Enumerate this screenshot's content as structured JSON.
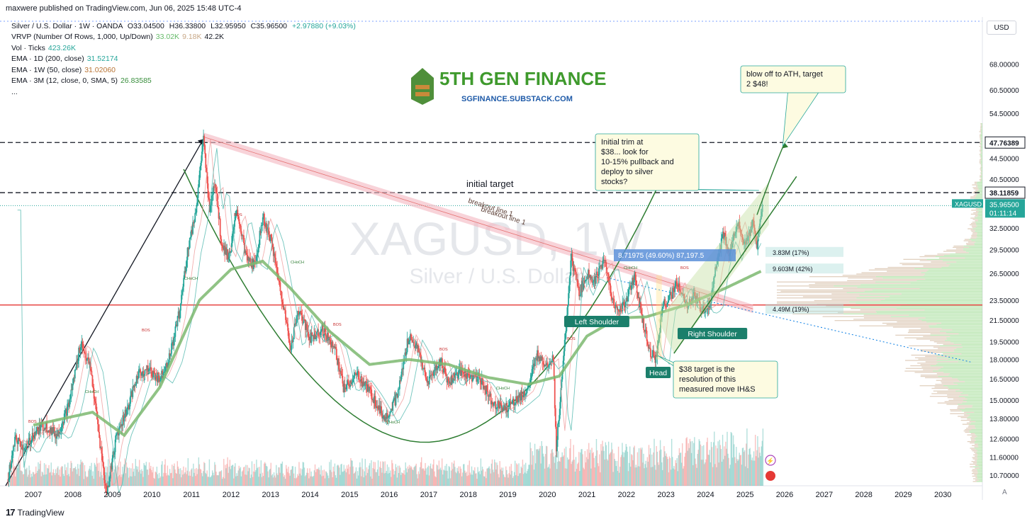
{
  "header": {
    "publisher": "maxwere published on TradingView.com, Jun 06, 2025 15:48 UTC-4",
    "symbol_line": {
      "name": "Silver / U.S. Dollar · 1W · OANDA",
      "o": "O33.04500",
      "h": "H36.33800",
      "l": "L32.95950",
      "c": "C35.96500",
      "change": "+2.97880 (+9.03%)"
    },
    "indicators": [
      {
        "label": "VRVP (Number Of Rows, 1,000, Up/Down)",
        "values": [
          "33.02K",
          "9.18K",
          "42.2K"
        ],
        "colors": [
          "#66bb6a",
          "#c8a887",
          "#131722"
        ]
      },
      {
        "label": "Vol · Ticks",
        "values": [
          "423.26K"
        ],
        "colors": [
          "#26a69a"
        ]
      },
      {
        "label": "EMA · 1D (200, close)",
        "values": [
          "31.52174"
        ],
        "colors": [
          "#26a69a"
        ]
      },
      {
        "label": "EMA · 1W (50, close)",
        "values": [
          "31.02060"
        ],
        "colors": [
          "#b87333"
        ]
      },
      {
        "label": "EMA · 3M (12, close, 0, SMA, 5)",
        "values": [
          "26.83585"
        ],
        "colors": [
          "#388e3c"
        ]
      },
      {
        "label": "...",
        "values": [],
        "colors": []
      }
    ]
  },
  "currency": "USD",
  "watermark": {
    "symbol": "XAGUSD, 1W",
    "name": "Silver / U.S. Dollar"
  },
  "brand": {
    "name": "5TH GEN FINANCE",
    "url": "SGFINANCE.SUBSTACK.COM",
    "color": "#3f9a2d",
    "url_color": "#1e5aa8"
  },
  "footer": {
    "brand": "TradingView"
  },
  "colors": {
    "up": "#26a69a",
    "down": "#ef5350",
    "ema_light": "#8bc34a",
    "ema_heavy": "#7cb870",
    "support": "#e53935",
    "trend": "#2e7d32"
  },
  "chart_data": {
    "type": "candlestick",
    "title": "Silver / U.S. Dollar · 1W · OANDA",
    "xlabel": "",
    "ylabel": "USD",
    "log_scale": true,
    "x_ticks": [
      "2007",
      "2008",
      "2009",
      "2010",
      "2011",
      "2012",
      "2013",
      "2014",
      "2015",
      "2016",
      "2017",
      "2018",
      "2019",
      "2020",
      "2021",
      "2022",
      "2023",
      "2024",
      "2025",
      "2026",
      "2027",
      "2028",
      "2029",
      "2030"
    ],
    "y_ticks": [
      "68.00000",
      "60.50000",
      "54.50000",
      "44.50000",
      "40.50000",
      "32.50000",
      "29.50000",
      "26.50000",
      "23.50000",
      "21.50000",
      "19.50000",
      "18.00000",
      "16.50000",
      "15.00000",
      "13.80000",
      "12.60000",
      "11.60000",
      "10.70000"
    ],
    "ylim": [
      10.2,
      84
    ],
    "price_path": [
      [
        2006.35,
        10.5
      ],
      [
        2006.55,
        12.6
      ],
      [
        2006.8,
        12.0
      ],
      [
        2007.0,
        12.9
      ],
      [
        2007.3,
        13.4
      ],
      [
        2007.6,
        12.8
      ],
      [
        2007.9,
        14.7
      ],
      [
        2008.2,
        19.5
      ],
      [
        2008.45,
        17.2
      ],
      [
        2008.65,
        13.0
      ],
      [
        2008.85,
        9.8
      ],
      [
        2009.1,
        12.8
      ],
      [
        2009.4,
        14.6
      ],
      [
        2009.65,
        16.9
      ],
      [
        2009.9,
        17.2
      ],
      [
        2010.2,
        16.5
      ],
      [
        2010.45,
        18.3
      ],
      [
        2010.7,
        22.4
      ],
      [
        2010.9,
        29.4
      ],
      [
        2011.1,
        34.8
      ],
      [
        2011.3,
        48.5
      ],
      [
        2011.45,
        35.5
      ],
      [
        2011.6,
        40.5
      ],
      [
        2011.75,
        30.5
      ],
      [
        2011.95,
        28.5
      ],
      [
        2012.15,
        35.2
      ],
      [
        2012.4,
        28.2
      ],
      [
        2012.6,
        27.5
      ],
      [
        2012.8,
        34.2
      ],
      [
        2013.0,
        31.0
      ],
      [
        2013.3,
        23.5
      ],
      [
        2013.5,
        19.0
      ],
      [
        2013.7,
        22.5
      ],
      [
        2014.0,
        19.8
      ],
      [
        2014.3,
        20.6
      ],
      [
        2014.6,
        19.2
      ],
      [
        2014.85,
        15.8
      ],
      [
        2015.2,
        16.8
      ],
      [
        2015.5,
        15.6
      ],
      [
        2015.9,
        13.8
      ],
      [
        2016.2,
        15.2
      ],
      [
        2016.5,
        20.1
      ],
      [
        2016.75,
        18.6
      ],
      [
        2016.95,
        16.2
      ],
      [
        2017.3,
        17.9
      ],
      [
        2017.5,
        16.2
      ],
      [
        2017.75,
        17.0
      ],
      [
        2017.95,
        16.8
      ],
      [
        2018.3,
        16.5
      ],
      [
        2018.6,
        14.9
      ],
      [
        2018.9,
        14.4
      ],
      [
        2019.2,
        15.0
      ],
      [
        2019.5,
        15.7
      ],
      [
        2019.75,
        18.5
      ],
      [
        2019.95,
        17.6
      ],
      [
        2020.15,
        18.2
      ],
      [
        2020.22,
        12.0
      ],
      [
        2020.4,
        17.6
      ],
      [
        2020.6,
        28.5
      ],
      [
        2020.8,
        24.2
      ],
      [
        2021.0,
        26.5
      ],
      [
        2021.2,
        25.8
      ],
      [
        2021.45,
        28.0
      ],
      [
        2021.7,
        22.5
      ],
      [
        2021.95,
        23.0
      ],
      [
        2022.2,
        26.2
      ],
      [
        2022.4,
        21.5
      ],
      [
        2022.6,
        18.7
      ],
      [
        2022.75,
        18.0
      ],
      [
        2022.9,
        22.8
      ],
      [
        2023.1,
        23.8
      ],
      [
        2023.3,
        25.4
      ],
      [
        2023.5,
        22.8
      ],
      [
        2023.7,
        23.9
      ],
      [
        2023.9,
        22.5
      ],
      [
        2024.1,
        23.0
      ],
      [
        2024.3,
        28.5
      ],
      [
        2024.45,
        31.6
      ],
      [
        2024.6,
        28.5
      ],
      [
        2024.8,
        33.8
      ],
      [
        2025.0,
        29.8
      ],
      [
        2025.2,
        33.3
      ],
      [
        2025.3,
        30.0
      ],
      [
        2025.43,
        35.965
      ]
    ],
    "ema_3m": [
      [
        2007.0,
        13.4
      ],
      [
        2008.5,
        14.2
      ],
      [
        2009.3,
        12.8
      ],
      [
        2010.2,
        15.9
      ],
      [
        2011.2,
        23.5
      ],
      [
        2012.0,
        27.0
      ],
      [
        2012.8,
        28.0
      ],
      [
        2013.5,
        24.8
      ],
      [
        2014.5,
        20.4
      ],
      [
        2015.5,
        17.6
      ],
      [
        2016.5,
        18.0
      ],
      [
        2017.5,
        17.6
      ],
      [
        2018.5,
        16.6
      ],
      [
        2019.5,
        16.1
      ],
      [
        2020.3,
        16.7
      ],
      [
        2021.0,
        20.0
      ],
      [
        2021.8,
        21.7
      ],
      [
        2022.5,
        21.8
      ],
      [
        2023.5,
        23.0
      ],
      [
        2024.5,
        24.8
      ],
      [
        2025.43,
        26.83585
      ]
    ],
    "price_labels": [
      {
        "price": 47.76389,
        "text": "47.76389"
      },
      {
        "price": 38.11859,
        "text": "38.11859"
      },
      {
        "price": 35.965,
        "symbol": "XAGUSD",
        "text": "35.96500",
        "countdown": "01:11:14"
      }
    ],
    "annotations": {
      "initial_target": "initial target",
      "breakout_line": "breakout line 1",
      "left_shoulder": "Left Shoulder",
      "head": "Head",
      "right_shoulder": "Right Shoulder",
      "measure": "8.71975 (49.60%) 87,197.5",
      "vp_labels": [
        "3.83M (17%)",
        "9.603M (42%)",
        "4.49M (19%)"
      ],
      "callouts": [
        {
          "text": "blow off to ATH, target 2 $48!"
        },
        {
          "text": "Initial trim at $38... look for 10-15% pullback and deploy to silver stocks?"
        },
        {
          "text": "$38 target is the resolution of this measured move IH&S"
        }
      ],
      "small_tags": [
        "BOS",
        "CHoCH"
      ]
    },
    "support_level": 23.0,
    "lines": {
      "ath": 47.76389,
      "target": 38.11859,
      "last_price": 35.965
    }
  }
}
